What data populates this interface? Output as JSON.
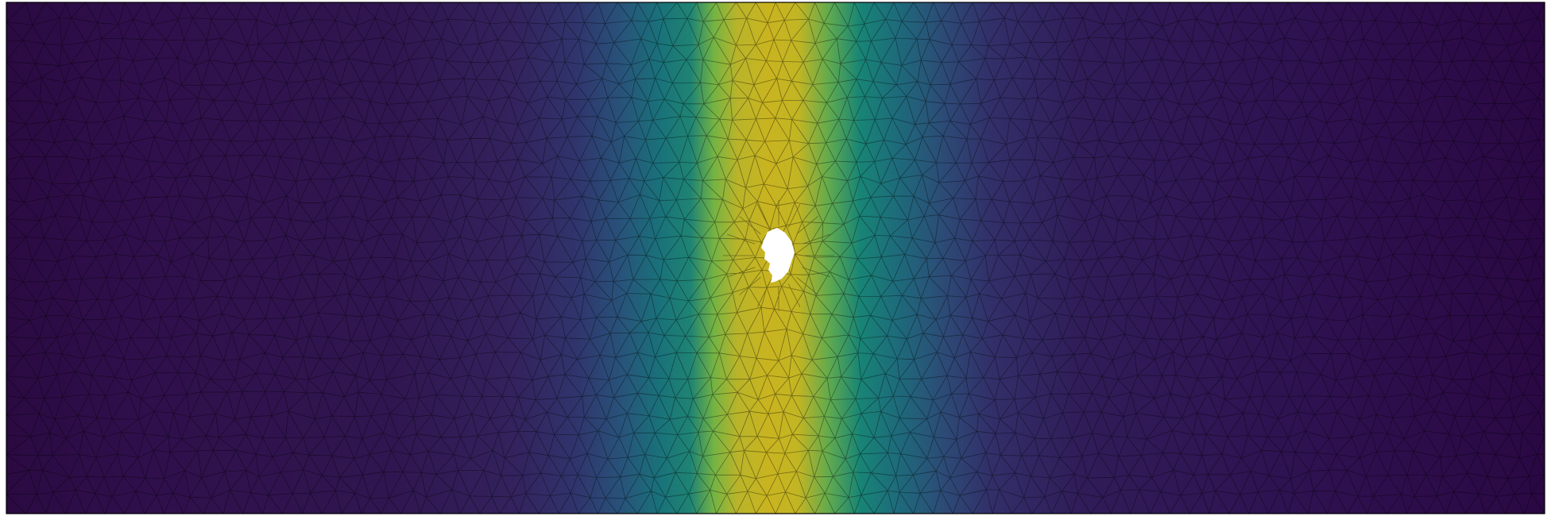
{
  "figure": {
    "kind": "triangulated mesh with scalar field colouring",
    "colormap": "viridis",
    "colormap_stops": [
      "#2d0a45",
      "#33205e",
      "#2f3f74",
      "#22657b",
      "#177c76",
      "#3ea65a",
      "#8cb63a",
      "#c7b522"
    ],
    "field_peak_color": "#c7b522",
    "field_low_color": "#2d0a45",
    "mesh_edge_color": "#000000",
    "frame_color": "#000000",
    "hole_color": "#ffffff",
    "has_central_hole": true
  }
}
